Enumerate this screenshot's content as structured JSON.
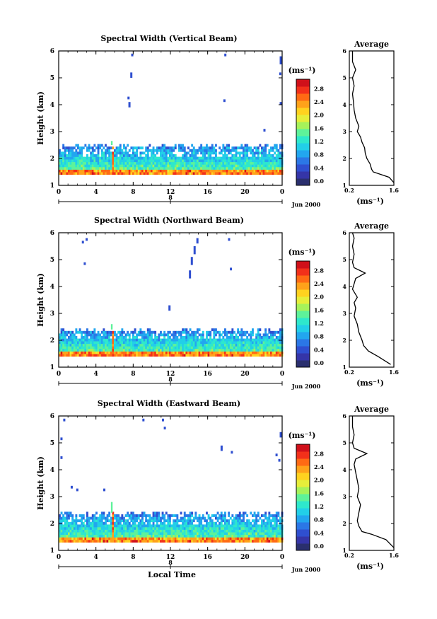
{
  "chart_data": [
    {
      "type": "heatmap",
      "title": "Spectral Width (Vertical Beam)",
      "ylabel": "Height (km)",
      "ylim": [
        1,
        6
      ],
      "xlim": [
        0,
        24
      ],
      "x_ticks": [
        "0",
        "4",
        "8",
        "12",
        "16",
        "20",
        "0"
      ],
      "y_ticks": [
        "1",
        "2",
        "3",
        "4",
        "5",
        "6"
      ],
      "day_axis": {
        "ticks": [
          0,
          12,
          24
        ],
        "label": "8",
        "month_year": "Jun 2000"
      },
      "colorbar": {
        "unit": "(ms⁻¹)",
        "range": [
          0,
          3.0
        ],
        "labels": [
          "0.0",
          "0.4",
          "0.8",
          "1.2",
          "1.6",
          "2.0",
          "2.4",
          "2.8"
        ]
      },
      "dense_layer": {
        "bottom_km": 1.4,
        "top_km": 2.5,
        "spike_hour": 5.7,
        "spike_top_km": 2.65
      },
      "isolated_echoes": [
        {
          "hour": 7.9,
          "bottom_km": 5.8,
          "top_km": 5.9
        },
        {
          "hour": 7.8,
          "bottom_km": 5.0,
          "top_km": 5.2
        },
        {
          "hour": 7.5,
          "bottom_km": 4.2,
          "top_km": 4.3
        },
        {
          "hour": 7.6,
          "bottom_km": 3.9,
          "top_km": 4.1
        },
        {
          "hour": 17.9,
          "bottom_km": 5.8,
          "top_km": 5.9
        },
        {
          "hour": 17.8,
          "bottom_km": 4.1,
          "top_km": 4.2
        },
        {
          "hour": 22.1,
          "bottom_km": 3.0,
          "top_km": 3.1
        },
        {
          "hour": 24.0,
          "bottom_km": 5.5,
          "top_km": 5.8
        },
        {
          "hour": 24.3,
          "bottom_km": 4.0,
          "top_km": 4.1
        },
        {
          "hour": 23.8,
          "bottom_km": 5.1,
          "top_km": 5.2
        }
      ],
      "average_panel": {
        "title": "Average",
        "xlim": [
          0.2,
          1.6
        ],
        "x_ticks": [
          "0.2",
          "1.6"
        ],
        "xlabel": "(ms⁻¹)",
        "height_km": [
          1.1,
          1.3,
          1.4,
          1.5,
          1.6,
          1.8,
          2.0,
          2.2,
          2.4,
          2.6,
          2.8,
          3.0,
          3.2,
          3.5,
          3.8,
          4.1,
          4.4,
          4.7,
          5.0,
          5.3,
          5.6,
          6.0
        ],
        "width_ms": [
          1.6,
          1.45,
          1.2,
          0.95,
          0.9,
          0.85,
          0.75,
          0.7,
          0.68,
          0.6,
          0.55,
          0.45,
          0.5,
          0.4,
          0.35,
          0.33,
          0.3,
          0.35,
          0.3,
          0.4,
          0.3,
          0.3
        ]
      }
    },
    {
      "type": "heatmap",
      "title": "Spectral Width (Northward Beam)",
      "ylabel": "Height (km)",
      "ylim": [
        1,
        6
      ],
      "xlim": [
        0,
        24
      ],
      "x_ticks": [
        "0",
        "4",
        "8",
        "12",
        "16",
        "20",
        "0"
      ],
      "y_ticks": [
        "1",
        "2",
        "3",
        "4",
        "5",
        "6"
      ],
      "day_axis": {
        "ticks": [
          0,
          12,
          24
        ],
        "label": "8",
        "month_year": "Jun 2000"
      },
      "colorbar": {
        "unit": "(ms⁻¹)",
        "range": [
          0,
          3.0
        ],
        "labels": [
          "0.0",
          "0.4",
          "0.8",
          "1.2",
          "1.6",
          "2.0",
          "2.4",
          "2.8"
        ]
      },
      "dense_layer": {
        "bottom_km": 1.4,
        "top_km": 2.4,
        "spike_hour": 5.7,
        "spike_top_km": 2.6
      },
      "isolated_echoes": [
        {
          "hour": 2.6,
          "bottom_km": 5.6,
          "top_km": 5.7
        },
        {
          "hour": 3.0,
          "bottom_km": 5.7,
          "top_km": 5.8
        },
        {
          "hour": 2.8,
          "bottom_km": 4.8,
          "top_km": 4.9
        },
        {
          "hour": 14.9,
          "bottom_km": 5.6,
          "top_km": 5.8
        },
        {
          "hour": 14.6,
          "bottom_km": 5.2,
          "top_km": 5.5
        },
        {
          "hour": 14.3,
          "bottom_km": 4.8,
          "top_km": 5.1
        },
        {
          "hour": 14.1,
          "bottom_km": 4.3,
          "top_km": 4.6
        },
        {
          "hour": 18.3,
          "bottom_km": 5.7,
          "top_km": 5.8
        },
        {
          "hour": 18.5,
          "bottom_km": 4.6,
          "top_km": 4.7
        },
        {
          "hour": 11.9,
          "bottom_km": 3.1,
          "top_km": 3.3
        }
      ],
      "average_panel": {
        "title": "Average",
        "xlim": [
          0.2,
          1.6
        ],
        "x_ticks": [
          "0.2",
          "1.6"
        ],
        "xlabel": "(ms⁻¹)",
        "height_km": [
          1.1,
          1.4,
          1.6,
          1.8,
          2.0,
          2.3,
          2.6,
          2.9,
          3.2,
          3.4,
          3.6,
          3.9,
          4.1,
          4.3,
          4.5,
          4.7,
          4.9,
          5.2,
          5.5,
          5.8,
          6.0
        ],
        "width_ms": [
          1.5,
          1.1,
          0.8,
          0.65,
          0.6,
          0.5,
          0.45,
          0.35,
          0.4,
          0.35,
          0.45,
          0.3,
          0.35,
          0.4,
          0.7,
          0.35,
          0.3,
          0.35,
          0.3,
          0.35,
          0.3
        ]
      }
    },
    {
      "type": "heatmap",
      "title": "Spectral Width (Eastward Beam)",
      "ylabel": "Height (km)",
      "xlabel": "Local Time",
      "ylim": [
        1,
        6
      ],
      "xlim": [
        0,
        24
      ],
      "x_ticks": [
        "0",
        "4",
        "8",
        "12",
        "16",
        "20",
        "0"
      ],
      "y_ticks": [
        "1",
        "2",
        "3",
        "4",
        "5",
        "6"
      ],
      "day_axis": {
        "ticks": [
          0,
          12,
          24
        ],
        "label": "8",
        "month_year": "Jun 2000"
      },
      "colorbar": {
        "unit": "(ms⁻¹)",
        "range": [
          0,
          3.0
        ],
        "labels": [
          "0.0",
          "0.4",
          "0.8",
          "1.2",
          "1.6",
          "2.0",
          "2.4",
          "2.8"
        ]
      },
      "dense_layer": {
        "bottom_km": 1.3,
        "top_km": 2.4,
        "spike_hour": 5.7,
        "spike_top_km": 2.8
      },
      "isolated_echoes": [
        {
          "hour": 0.6,
          "bottom_km": 5.8,
          "top_km": 5.9
        },
        {
          "hour": 0.3,
          "bottom_km": 5.1,
          "top_km": 5.2
        },
        {
          "hour": 0.3,
          "bottom_km": 4.4,
          "top_km": 4.5
        },
        {
          "hour": 1.4,
          "bottom_km": 3.3,
          "top_km": 3.4
        },
        {
          "hour": 2.0,
          "bottom_km": 3.2,
          "top_km": 3.3
        },
        {
          "hour": 4.9,
          "bottom_km": 3.2,
          "top_km": 3.3
        },
        {
          "hour": 9.1,
          "bottom_km": 5.8,
          "top_km": 5.9
        },
        {
          "hour": 11.2,
          "bottom_km": 5.8,
          "top_km": 5.9
        },
        {
          "hour": 11.4,
          "bottom_km": 5.5,
          "top_km": 5.6
        },
        {
          "hour": 17.5,
          "bottom_km": 4.7,
          "top_km": 4.9
        },
        {
          "hour": 18.6,
          "bottom_km": 4.6,
          "top_km": 4.7
        },
        {
          "hour": 23.4,
          "bottom_km": 4.5,
          "top_km": 4.6
        },
        {
          "hour": 23.7,
          "bottom_km": 4.3,
          "top_km": 4.4
        },
        {
          "hour": 23.9,
          "bottom_km": 5.2,
          "top_km": 5.4
        }
      ],
      "average_panel": {
        "title": "Average",
        "xlim": [
          0.2,
          1.6
        ],
        "x_ticks": [
          "0.2",
          "1.6"
        ],
        "xlabel": "(ms⁻¹)",
        "height_km": [
          1.1,
          1.4,
          1.6,
          1.7,
          1.9,
          2.1,
          2.4,
          2.7,
          3.0,
          3.3,
          3.6,
          3.9,
          4.2,
          4.4,
          4.6,
          4.8,
          5.0,
          5.3,
          5.6,
          6.0
        ],
        "width_ms": [
          1.6,
          1.35,
          0.9,
          0.6,
          0.5,
          0.45,
          0.5,
          0.55,
          0.45,
          0.5,
          0.45,
          0.4,
          0.35,
          0.4,
          0.75,
          0.35,
          0.3,
          0.35,
          0.3,
          0.3
        ]
      }
    }
  ],
  "colorbar_colors": [
    "#2a2f6e",
    "#3535a8",
    "#2f4fd0",
    "#2b77e6",
    "#22a6ef",
    "#22cfe8",
    "#2ee8cc",
    "#5ef29a",
    "#a6f25a",
    "#e6ee3a",
    "#ffd21f",
    "#ffa21a",
    "#ff6a14",
    "#f2301a",
    "#d0101a"
  ]
}
